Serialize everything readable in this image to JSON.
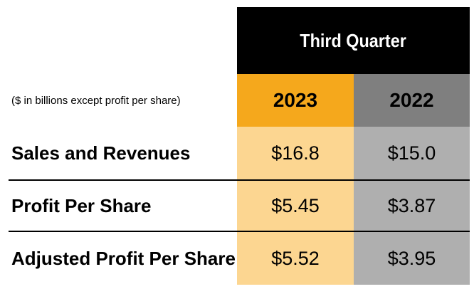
{
  "table": {
    "header_title": "Third Quarter",
    "units_note": "($ in billions except profit per share)",
    "columns": [
      "2023",
      "2022"
    ],
    "rows": [
      {
        "label": "Sales and Revenues",
        "values": [
          "$16.8",
          "$15.0"
        ]
      },
      {
        "label": "Profit Per Share",
        "values": [
          "$5.45",
          "$3.87"
        ]
      },
      {
        "label": "Adjusted Profit Per Share",
        "values": [
          "$5.52",
          "$3.95"
        ]
      }
    ]
  },
  "colors": {
    "header_bg": "#000000",
    "col_2023_header": "#F5A81C",
    "col_2022_header": "#7F7F7F",
    "col_2023_body": "#FCD691",
    "col_2022_body": "#AFAFAF"
  }
}
